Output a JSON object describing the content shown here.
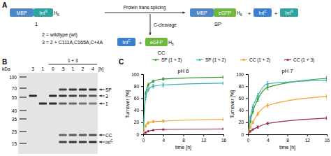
{
  "panel_a": {
    "label": "A",
    "construct": {
      "name": "1",
      "domains": [
        {
          "text": "MBP",
          "color": "#4f86c6"
        },
        {
          "text": "Int",
          "sup": "N",
          "color": "#2fa3a0"
        },
        {
          "text": "H",
          "sub": "6"
        }
      ]
    },
    "definitions": [
      "2 = wildtype (wt)",
      "3 = 2 + C111A,C165A,C+4A"
    ],
    "trans_splicing": "Protein trans-splicing",
    "c_cleavage": "C-cleavage",
    "sp_product": {
      "name": "SP",
      "domains": [
        {
          "text": "MBP",
          "color": "#4f86c6"
        },
        {
          "text": "eGFP",
          "color": "#6fb83f"
        },
        {
          "text": "H",
          "sub": "6"
        }
      ]
    },
    "sp_byproducts": [
      {
        "text": "Int",
        "sup": "C",
        "color": "#3b7fd0"
      },
      {
        "text": "Int",
        "sup": "N",
        "color": "#2fa3a0"
      }
    ],
    "cc_product": {
      "name": "CC",
      "domains": [
        {
          "text": "eGFP",
          "color": "#6fb83f"
        },
        {
          "text": "H",
          "sub": "6"
        }
      ]
    },
    "cc_byproduct": {
      "text": "Int",
      "sup": "C",
      "color": "#3b7fd0"
    },
    "plus": "+"
  },
  "panel_b": {
    "label": "B",
    "unit": "kDa",
    "markers": [
      100,
      70,
      55,
      40,
      35,
      25,
      15
    ],
    "group": "1 + 3",
    "lanes": [
      "3",
      "1",
      "0",
      ".5",
      "1",
      "2",
      "4"
    ],
    "time_unit": "[h]",
    "bands": [
      "SP",
      "3",
      "1",
      "CC",
      {
        "text": "Int",
        "sup": "C"
      }
    ]
  },
  "panel_c_label": "C",
  "chart_data": [
    {
      "type": "line",
      "title": "pH 6",
      "x_label": "time [h]",
      "y_label": "Turnover [%]",
      "x": [
        0,
        0.5,
        1,
        2,
        4,
        16
      ],
      "xlim": [
        0,
        16
      ],
      "xticks": [
        0,
        4,
        8,
        12,
        16
      ],
      "ylim": [
        0,
        100
      ],
      "yticks": [
        0,
        20,
        40,
        60,
        80,
        100
      ],
      "legend": "top",
      "series": [
        {
          "name": "SP (1 + 3)",
          "color": "#3a9a3a",
          "marker": "circle",
          "line_style": "solid",
          "values": [
            0,
            68,
            82,
            88,
            92,
            95
          ],
          "errors": [
            0,
            3,
            3,
            2,
            2,
            2
          ]
        },
        {
          "name": "SP (1 + 2)",
          "color": "#3bb5b0",
          "marker": "circle",
          "line_style": "solid",
          "values": [
            0,
            62,
            74,
            80,
            82,
            85
          ],
          "errors": [
            0,
            4,
            3,
            3,
            3,
            2
          ]
        },
        {
          "name": "CC (1 + 2)",
          "color": "#f0a22e",
          "marker": "circle",
          "line_style": "solid",
          "values": [
            0,
            14,
            19,
            21,
            22,
            25
          ],
          "errors": [
            0,
            2,
            2,
            2,
            2,
            2
          ]
        },
        {
          "name": "CC (1 + 3)",
          "color": "#9b2a56",
          "marker": "circle",
          "line_style": "solid",
          "values": [
            0,
            3,
            5,
            7,
            8,
            9
          ],
          "errors": [
            0,
            1,
            1,
            1,
            1,
            1
          ]
        }
      ]
    },
    {
      "type": "line",
      "title": "pH 7",
      "x_label": "time [h]",
      "y_label": "Turnover [%]",
      "x": [
        0,
        0.5,
        1,
        2,
        4,
        16
      ],
      "xlim": [
        0,
        16
      ],
      "xticks": [
        0,
        4,
        8,
        12,
        16
      ],
      "ylim": [
        0,
        100
      ],
      "yticks": [
        0,
        20,
        40,
        60,
        80,
        100
      ],
      "series": [
        {
          "color": "#3a9a3a",
          "marker": "circle",
          "line_style": "solid",
          "values": [
            0,
            22,
            38,
            58,
            78,
            93
          ],
          "errors": [
            0,
            3,
            3,
            4,
            4,
            3
          ]
        },
        {
          "color": "#3bb5b0",
          "marker": "circle",
          "line_style": "solid",
          "values": [
            0,
            28,
            45,
            64,
            84,
            90
          ],
          "errors": [
            0,
            3,
            4,
            4,
            4,
            3
          ]
        },
        {
          "color": "#f0a22e",
          "marker": "circle",
          "line_style": "solid",
          "values": [
            0,
            12,
            20,
            34,
            48,
            63
          ],
          "errors": [
            0,
            2,
            2,
            3,
            3,
            3
          ]
        },
        {
          "color": "#9b2a56",
          "marker": "circle",
          "line_style": "solid",
          "values": [
            0,
            5,
            8,
            12,
            18,
            27
          ],
          "errors": [
            0,
            1,
            1,
            2,
            2,
            2
          ]
        }
      ]
    }
  ]
}
